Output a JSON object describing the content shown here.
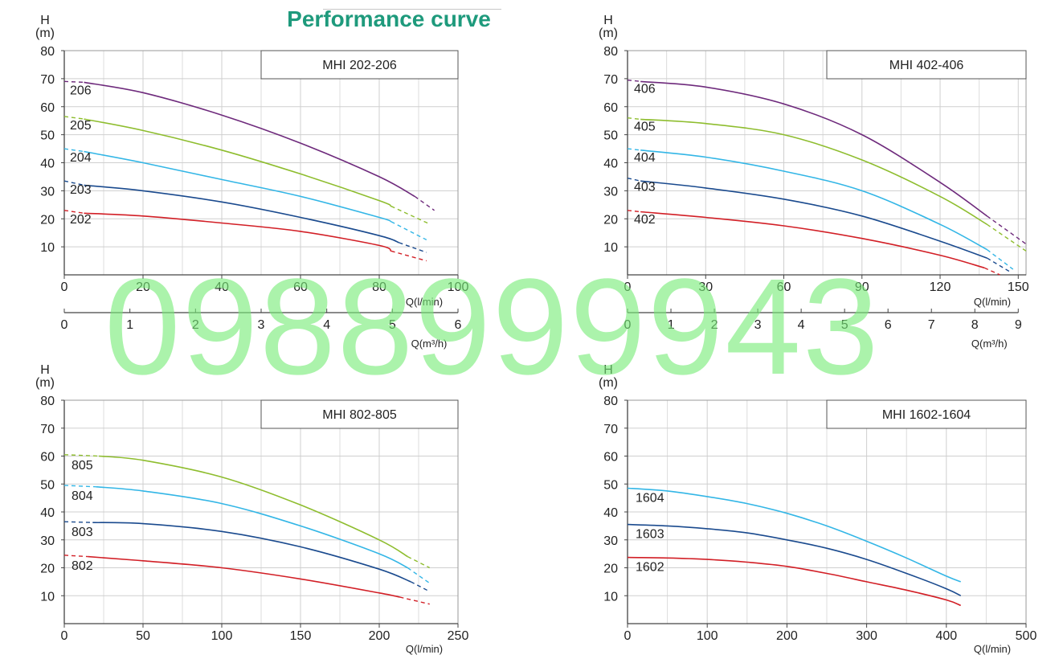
{
  "page": {
    "title": "Performance curve",
    "watermark": "0988999943"
  },
  "colors": {
    "red": "#d21f26",
    "navy": "#1a4a8e",
    "cyan": "#33b6e6",
    "green": "#8ebd2e",
    "purple": "#6e2a7c",
    "title": "#1e9a7c",
    "grid": "#cfcfcf"
  },
  "chart_data": [
    {
      "type": "line",
      "title": "MHI   202-206",
      "ylabel": "H\n(m)",
      "xlabel": "Q(l/min)",
      "xlabel2": "Q(m³/h)",
      "xlim": [
        0,
        100
      ],
      "ylim": [
        0,
        80
      ],
      "xticks": [
        0,
        20,
        40,
        60,
        80,
        100
      ],
      "yticks": [
        10,
        20,
        30,
        40,
        50,
        60,
        70,
        80
      ],
      "x2_ticks": [
        0,
        1,
        2,
        3,
        4,
        5,
        6
      ],
      "x2_max": 6,
      "grid": true,
      "series": [
        {
          "name": "206",
          "color": "#6e2a7c",
          "dash_start": [
            0,
            69
          ],
          "x": [
            5,
            20,
            40,
            60,
            80,
            89
          ],
          "y": [
            68.7,
            65,
            57,
            47,
            35,
            28
          ],
          "dash_end": [
            94,
            23
          ]
        },
        {
          "name": "205",
          "color": "#8ebd2e",
          "dash_start": [
            0,
            56.5
          ],
          "x": [
            5,
            20,
            40,
            60,
            80,
            83
          ],
          "y": [
            55.6,
            51.5,
            44.5,
            36,
            26.5,
            24.5
          ],
          "dash_end": [
            93,
            18
          ]
        },
        {
          "name": "204",
          "color": "#33b6e6",
          "dash_start": [
            0,
            45
          ],
          "x": [
            5,
            20,
            40,
            60,
            80,
            83
          ],
          "y": [
            44,
            40,
            34,
            28,
            20.5,
            19
          ],
          "dash_end": [
            92,
            12.5
          ]
        },
        {
          "name": "203",
          "color": "#1a4a8e",
          "dash_start": [
            0,
            33.5
          ],
          "x": [
            5,
            20,
            40,
            60,
            80,
            85
          ],
          "y": [
            32,
            30,
            26,
            20.5,
            14,
            11.5
          ],
          "dash_end": [
            92,
            8
          ]
        },
        {
          "name": "202",
          "color": "#d21f26",
          "dash_start": [
            0,
            23
          ],
          "x": [
            5,
            20,
            40,
            60,
            80,
            83
          ],
          "y": [
            22,
            21,
            18.5,
            15.5,
            10.5,
            8.5
          ],
          "dash_end": [
            92,
            5
          ]
        }
      ]
    },
    {
      "type": "line",
      "title": "MHI   402-406",
      "ylabel": "H\n(m)",
      "xlabel": "Q(l/min)",
      "xlabel2": "Q(m³/h)",
      "xlim": [
        0,
        153
      ],
      "ylim": [
        0,
        80
      ],
      "xticks": [
        0,
        30,
        60,
        90,
        120,
        150
      ],
      "yticks": [
        10,
        20,
        30,
        40,
        50,
        60,
        70,
        80
      ],
      "x2_ticks": [
        0,
        1,
        2,
        3,
        4,
        5,
        6,
        7,
        8,
        9
      ],
      "x2_max": 9,
      "grid": true,
      "series": [
        {
          "name": "406",
          "color": "#6e2a7c",
          "dash_start": [
            0,
            69.5
          ],
          "x": [
            5,
            30,
            60,
            90,
            120,
            138
          ],
          "y": [
            69,
            67,
            61,
            50,
            33,
            21
          ],
          "dash_end": [
            153,
            11
          ]
        },
        {
          "name": "405",
          "color": "#8ebd2e",
          "dash_start": [
            0,
            56
          ],
          "x": [
            5,
            30,
            60,
            90,
            120,
            138
          ],
          "y": [
            55.5,
            54,
            50,
            41,
            28,
            18
          ],
          "dash_end": [
            153,
            8.5
          ]
        },
        {
          "name": "404",
          "color": "#33b6e6",
          "dash_start": [
            0,
            45
          ],
          "x": [
            5,
            30,
            60,
            90,
            120,
            138
          ],
          "y": [
            44.5,
            42,
            37,
            30,
            18,
            9
          ],
          "dash_end": [
            148,
            2
          ]
        },
        {
          "name": "403",
          "color": "#1a4a8e",
          "dash_start": [
            0,
            34.5
          ],
          "x": [
            5,
            30,
            60,
            90,
            120,
            138
          ],
          "y": [
            33.5,
            31,
            27,
            21,
            12,
            6
          ],
          "dash_end": [
            147,
            1
          ]
        },
        {
          "name": "402",
          "color": "#d21f26",
          "dash_start": [
            0,
            23
          ],
          "x": [
            5,
            30,
            60,
            90,
            120,
            137
          ],
          "y": [
            22.5,
            20.5,
            17.5,
            13,
            7,
            2.5
          ],
          "dash_end": [
            143,
            0
          ]
        }
      ]
    },
    {
      "type": "line",
      "title": "MHI   802-805",
      "ylabel": "H\n(m)",
      "xlabel": "Q(l/min)",
      "xlim": [
        0,
        250
      ],
      "ylim": [
        0,
        80
      ],
      "xticks": [
        0,
        50,
        100,
        150,
        200,
        250
      ],
      "yticks": [
        10,
        20,
        30,
        40,
        50,
        60,
        70,
        80
      ],
      "grid": true,
      "series": [
        {
          "name": "805",
          "color": "#8ebd2e",
          "dash_start": [
            0,
            60.5
          ],
          "x": [
            22,
            50,
            100,
            150,
            200,
            218
          ],
          "y": [
            60,
            58.5,
            52.5,
            42.5,
            30,
            24
          ],
          "dash_end": [
            232,
            20
          ]
        },
        {
          "name": "804",
          "color": "#33b6e6",
          "dash_start": [
            0,
            49.5
          ],
          "x": [
            20,
            50,
            100,
            150,
            200,
            218
          ],
          "y": [
            49,
            47.5,
            43,
            35,
            25,
            20
          ],
          "dash_end": [
            232,
            14.5
          ]
        },
        {
          "name": "803",
          "color": "#1a4a8e",
          "dash_start": [
            0,
            36.5
          ],
          "x": [
            18,
            50,
            100,
            150,
            200,
            220
          ],
          "y": [
            36.2,
            35.8,
            33,
            27.5,
            19.5,
            15
          ],
          "dash_end": [
            232,
            11.5
          ]
        },
        {
          "name": "802",
          "color": "#d21f26",
          "dash_start": [
            0,
            24.5
          ],
          "x": [
            15,
            50,
            100,
            150,
            200,
            213
          ],
          "y": [
            24,
            22.5,
            20,
            16,
            11,
            9.5
          ],
          "dash_end": [
            232,
            7
          ]
        }
      ]
    },
    {
      "type": "line",
      "title": "MHI   1602-1604",
      "ylabel": "H\n(m)",
      "xlabel": "Q(l/min)",
      "xlim": [
        0,
        500
      ],
      "ylim": [
        0,
        80
      ],
      "xticks": [
        0,
        100,
        200,
        300,
        400,
        500
      ],
      "yticks": [
        10,
        20,
        30,
        40,
        50,
        60,
        70,
        80
      ],
      "grid": true,
      "series": [
        {
          "name": "1604",
          "color": "#33b6e6",
          "x": [
            0,
            50,
            100,
            150,
            200,
            250,
            300,
            350,
            400,
            418
          ],
          "y": [
            48.5,
            47.5,
            45.5,
            43,
            39.5,
            35,
            29.5,
            23.5,
            17,
            15
          ]
        },
        {
          "name": "1603",
          "color": "#1a4a8e",
          "x": [
            0,
            50,
            100,
            150,
            200,
            250,
            300,
            350,
            400,
            418
          ],
          "y": [
            35.5,
            35,
            34,
            32.5,
            30,
            27,
            23,
            18,
            12.5,
            10
          ]
        },
        {
          "name": "1602",
          "color": "#d21f26",
          "x": [
            0,
            50,
            100,
            150,
            200,
            250,
            300,
            350,
            400,
            418
          ],
          "y": [
            23.7,
            23.5,
            23,
            22,
            20.5,
            18,
            15,
            12,
            8.5,
            6.5
          ]
        }
      ]
    }
  ]
}
